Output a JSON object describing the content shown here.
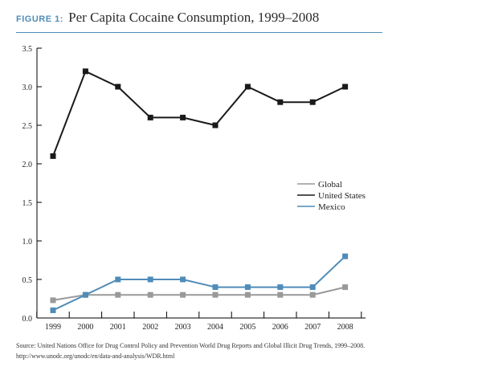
{
  "header": {
    "figure_tag": "FIGURE 1:",
    "title": "Per Capita Cocaine Consumption, 1999–2008"
  },
  "source": {
    "line1": "Source: United Nations Office for Drug Control Policy and Prevention World Drug Reports and Global Illicit Drug Trends, 1999–2008.",
    "line2": "http://www.unodc.org/unodc/en/data-and-analysis/WDR.html"
  },
  "chart_data": {
    "type": "line",
    "title": "Per Capita Cocaine Consumption, 1999–2008",
    "xlabel": "",
    "ylabel": "",
    "x": [
      "1999",
      "2000",
      "2001",
      "2002",
      "2003",
      "2004",
      "2005",
      "2006",
      "2007",
      "2008"
    ],
    "ylim": [
      0,
      3.5
    ],
    "yticks": [
      "0.0",
      "0.5",
      "1.0",
      "1.5",
      "2.0",
      "2.5",
      "3.0",
      "3.5"
    ],
    "grid": false,
    "legend_position": "right",
    "series": [
      {
        "name": "Global",
        "color": "#999999",
        "values": [
          0.23,
          0.3,
          0.3,
          0.3,
          0.3,
          0.3,
          0.3,
          0.3,
          0.3,
          0.4
        ]
      },
      {
        "name": "United States",
        "color": "#1a1a1a",
        "values": [
          2.1,
          3.2,
          3.0,
          2.6,
          2.6,
          2.5,
          3.0,
          2.8,
          2.8,
          3.0
        ]
      },
      {
        "name": "Mexico",
        "color": "#4f8cb8",
        "values": [
          0.1,
          0.3,
          0.5,
          0.5,
          0.5,
          0.4,
          0.4,
          0.4,
          0.4,
          0.8
        ]
      }
    ]
  }
}
